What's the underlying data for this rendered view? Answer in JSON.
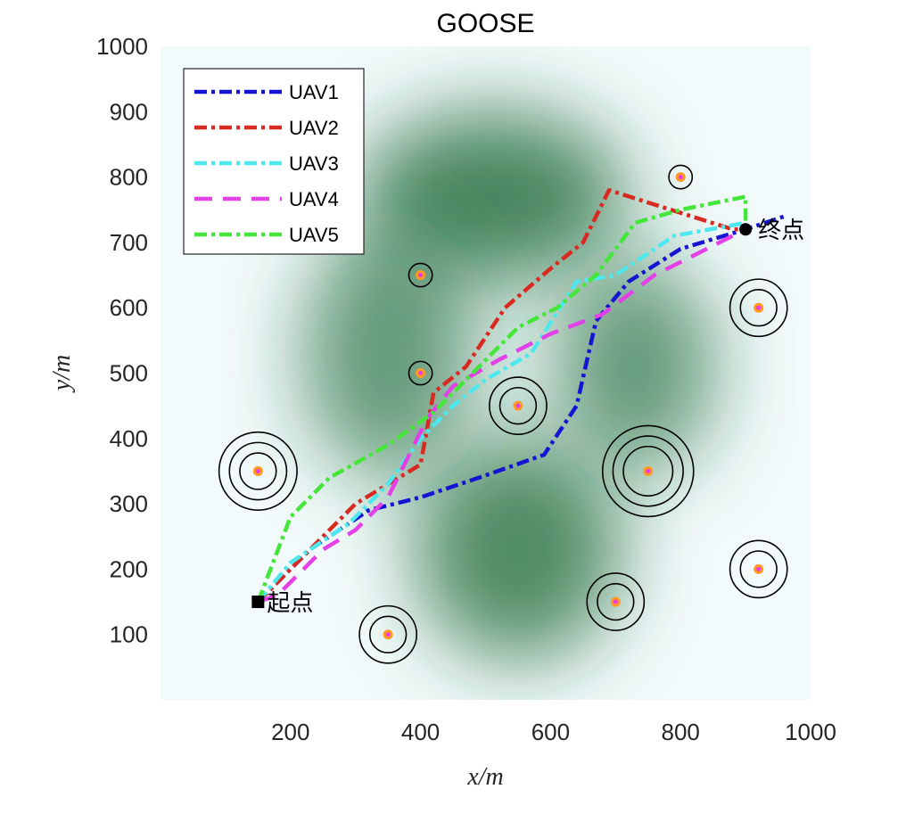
{
  "chart_data": {
    "type": "line",
    "title": "GOOSE",
    "xlabel": "x/m",
    "ylabel": "y/m",
    "xlim": [
      0,
      1000
    ],
    "ylim": [
      0,
      1000
    ],
    "xticks": [
      200,
      400,
      600,
      800,
      1000
    ],
    "yticks": [
      100,
      200,
      300,
      400,
      500,
      600,
      700,
      800,
      900,
      1000
    ],
    "grid": false,
    "legend_position": "top-left",
    "background": {
      "type": "terrain",
      "colormap": [
        "#f3fafb",
        "#1e6b3a"
      ],
      "peaks": [
        {
          "x": 510,
          "y": 770,
          "h": 1.0
        },
        {
          "x": 550,
          "y": 230,
          "h": 0.85
        },
        {
          "x": 350,
          "y": 530,
          "h": 0.45
        },
        {
          "x": 730,
          "y": 510,
          "h": 0.45
        }
      ]
    },
    "start": {
      "x": 150,
      "y": 150,
      "label": "起点"
    },
    "end": {
      "x": 900,
      "y": 720,
      "label": "终点"
    },
    "threats": [
      {
        "x": 400,
        "y": 650,
        "radii": [
          18
        ]
      },
      {
        "x": 800,
        "y": 800,
        "radii": [
          18
        ]
      },
      {
        "x": 920,
        "y": 600,
        "radii": [
          28,
          44
        ]
      },
      {
        "x": 400,
        "y": 500,
        "radii": [
          18
        ]
      },
      {
        "x": 550,
        "y": 450,
        "radii": [
          28,
          44
        ]
      },
      {
        "x": 150,
        "y": 350,
        "radii": [
          28,
          44,
          60
        ]
      },
      {
        "x": 750,
        "y": 350,
        "radii": [
          38,
          54,
          70
        ]
      },
      {
        "x": 920,
        "y": 200,
        "radii": [
          28,
          44
        ]
      },
      {
        "x": 700,
        "y": 150,
        "radii": [
          28,
          44
        ]
      },
      {
        "x": 350,
        "y": 100,
        "radii": [
          28,
          44
        ]
      }
    ],
    "series": [
      {
        "name": "UAV1",
        "color": "#1414d2",
        "dash": "14,5,4,5",
        "x": [
          150,
          230,
          320,
          400,
          490,
          590,
          640,
          670,
          720,
          800,
          900,
          960
        ],
        "y": [
          150,
          230,
          290,
          310,
          340,
          375,
          450,
          580,
          640,
          690,
          720,
          740
        ]
      },
      {
        "name": "UAV2",
        "color": "#d92a22",
        "dash": "14,5,4,5",
        "x": [
          150,
          220,
          300,
          400,
          420,
          470,
          530,
          600,
          650,
          690,
          880,
          900
        ],
        "y": [
          150,
          220,
          300,
          360,
          470,
          510,
          600,
          660,
          700,
          780,
          720,
          720
        ]
      },
      {
        "name": "UAV3",
        "color": "#4de8ee",
        "dash": "14,5,4,5",
        "x": [
          150,
          200,
          290,
          350,
          400,
          450,
          500,
          570,
          640,
          700,
          790,
          900
        ],
        "y": [
          150,
          210,
          270,
          330,
          400,
          450,
          490,
          530,
          640,
          650,
          710,
          730
        ]
      },
      {
        "name": "UAV4",
        "color": "#e340e8",
        "dash": "20,12",
        "x": [
          150,
          180,
          210,
          250,
          300,
          350,
          410,
          450,
          520,
          600,
          680,
          760,
          900
        ],
        "y": [
          150,
          160,
          190,
          230,
          260,
          310,
          430,
          480,
          520,
          560,
          590,
          650,
          720
        ]
      },
      {
        "name": "UAV5",
        "color": "#45e63a",
        "dash": "14,5,4,5",
        "x": [
          150,
          200,
          260,
          350,
          420,
          480,
          550,
          610,
          670,
          730,
          800,
          900,
          900
        ],
        "y": [
          150,
          280,
          340,
          390,
          440,
          500,
          570,
          600,
          650,
          730,
          750,
          770,
          720
        ]
      }
    ]
  }
}
